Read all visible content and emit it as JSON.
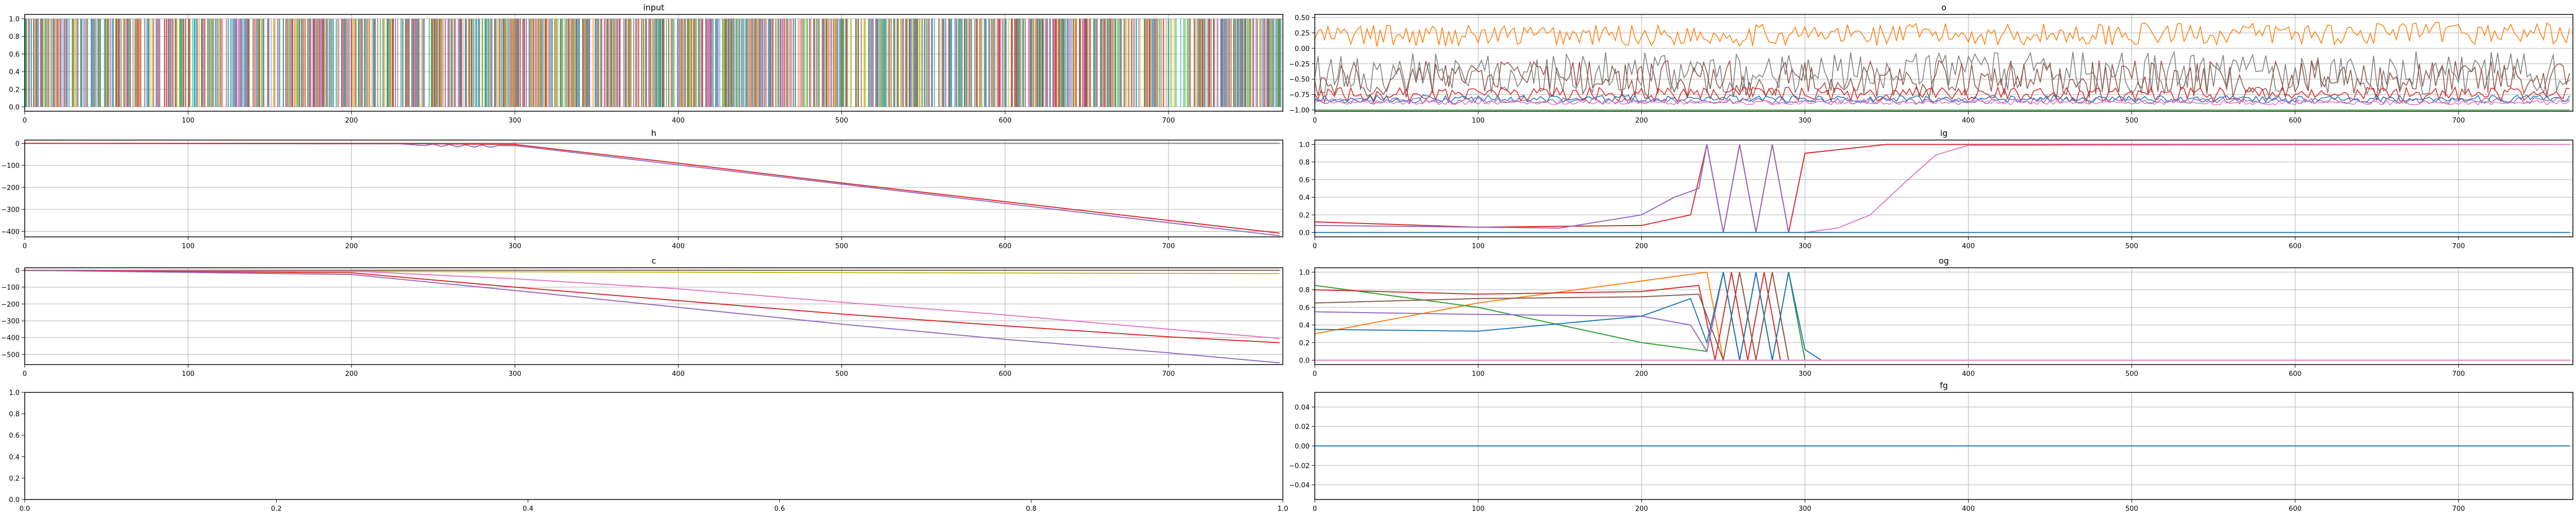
{
  "figure": {
    "panel_count": 8
  },
  "chart_data": [
    {
      "id": "input",
      "type": "line",
      "title": "input",
      "xlim": [
        0,
        770
      ],
      "ylim": [
        -0.05,
        1.05
      ],
      "xticks": [
        0,
        100,
        200,
        300,
        400,
        500,
        600,
        700
      ],
      "yticks": [
        0.0,
        0.2,
        0.4,
        0.6,
        0.8,
        1.0
      ],
      "ytick_labels": [
        "0.0",
        "0.2",
        "0.4",
        "0.6",
        "0.8",
        "1.0"
      ],
      "grid": true,
      "series": [
        {
          "color": "#1f77b4",
          "x": [
            0,
            768
          ],
          "y": [
            0.0,
            1.0
          ]
        },
        {
          "color": "#ff7f0e",
          "x": [
            0,
            768
          ],
          "y": [
            0.0,
            1.0
          ]
        },
        {
          "color": "#2ca02c",
          "x": [
            0,
            768
          ],
          "y": [
            0.0,
            1.0
          ]
        },
        {
          "color": "#d62728",
          "x": [
            0,
            768
          ],
          "y": [
            0.0,
            1.0
          ]
        },
        {
          "color": "#9467bd",
          "x": [
            0,
            768
          ],
          "y": [
            0.0,
            1.0
          ]
        },
        {
          "color": "#8c564b",
          "x": [
            0,
            768
          ],
          "y": [
            0.0,
            1.0
          ]
        },
        {
          "color": "#e377c2",
          "x": [
            0,
            768
          ],
          "y": [
            0.0,
            1.0
          ]
        },
        {
          "color": "#7f7f7f",
          "x": [
            0,
            768
          ],
          "y": [
            0.0,
            1.0
          ]
        },
        {
          "color": "#bcbd22",
          "x": [
            0,
            768
          ],
          "y": [
            0.0,
            1.0
          ]
        },
        {
          "color": "#17becf",
          "x": [
            0,
            768
          ],
          "y": [
            0.0,
            1.0
          ]
        }
      ]
    },
    {
      "id": "o",
      "type": "line",
      "title": "o",
      "xlim": [
        0,
        770
      ],
      "ylim": [
        -1.02,
        0.55
      ],
      "xticks": [
        0,
        100,
        200,
        300,
        400,
        500,
        600,
        700
      ],
      "yticks": [
        -1.0,
        -0.75,
        -0.5,
        -0.25,
        0.0,
        0.25,
        0.5
      ],
      "ytick_labels": [
        "−1.00",
        "−0.75",
        "−0.50",
        "−0.25",
        "0.00",
        "0.25",
        "0.50"
      ],
      "grid": true,
      "series": [
        {
          "color": "#ff7f0e",
          "x": [
            0,
            768
          ],
          "y": [
            0.2,
            0.25
          ]
        },
        {
          "color": "#7f7f7f",
          "x": [
            0,
            768
          ],
          "y": [
            -0.4,
            -0.4
          ]
        },
        {
          "color": "#8c564b",
          "x": [
            0,
            768
          ],
          "y": [
            -0.5,
            -0.5
          ]
        },
        {
          "color": "#d62728",
          "x": [
            0,
            768
          ],
          "y": [
            -0.75,
            -0.75
          ]
        },
        {
          "color": "#1f77b4",
          "x": [
            0,
            768
          ],
          "y": [
            -0.82,
            -0.82
          ]
        },
        {
          "color": "#9467bd",
          "x": [
            0,
            768
          ],
          "y": [
            -0.85,
            -0.85
          ]
        },
        {
          "color": "#e377c2",
          "x": [
            0,
            768
          ],
          "y": [
            -0.88,
            -0.88
          ]
        },
        {
          "color": "#2ca02c",
          "x": [
            0,
            768
          ],
          "y": [
            -1.0,
            -1.0
          ]
        }
      ]
    },
    {
      "id": "h",
      "type": "line",
      "title": "h",
      "xlim": [
        0,
        770
      ],
      "ylim": [
        -425,
        15
      ],
      "xticks": [
        0,
        100,
        200,
        300,
        400,
        500,
        600,
        700
      ],
      "yticks": [
        0,
        -100,
        -200,
        -300,
        -400
      ],
      "ytick_labels": [
        "0",
        "−100",
        "−200",
        "−300",
        "−400"
      ],
      "grid": true,
      "series": [
        {
          "color": "#7f7f7f",
          "x": [
            0,
            768
          ],
          "y": [
            0,
            0
          ]
        },
        {
          "color": "#9467bd",
          "x": [
            0,
            230,
            245,
            250,
            255,
            260,
            265,
            270,
            275,
            280,
            285,
            290,
            300,
            768
          ],
          "y": [
            0,
            -2,
            -10,
            -3,
            -14,
            -5,
            -16,
            -6,
            -17,
            -8,
            -18,
            -10,
            -10,
            -420
          ]
        },
        {
          "color": "#d62728",
          "x": [
            0,
            230,
            300,
            400,
            500,
            600,
            700,
            768
          ],
          "y": [
            0,
            -1,
            -5,
            -90,
            -180,
            -265,
            -350,
            -408
          ]
        }
      ]
    },
    {
      "id": "ig",
      "type": "line",
      "title": "ig",
      "xlim": [
        0,
        770
      ],
      "ylim": [
        -0.05,
        1.05
      ],
      "xticks": [
        0,
        100,
        200,
        300,
        400,
        500,
        600,
        700
      ],
      "yticks": [
        0.0,
        0.2,
        0.4,
        0.6,
        0.8,
        1.0
      ],
      "ytick_labels": [
        "0.0",
        "0.2",
        "0.4",
        "0.6",
        "0.8",
        "1.0"
      ],
      "grid": true,
      "series": [
        {
          "color": "#d62728",
          "x": [
            0,
            100,
            200,
            230,
            240,
            250,
            260,
            270,
            280,
            290,
            300,
            350,
            768
          ],
          "y": [
            0.12,
            0.06,
            0.08,
            0.2,
            1.0,
            0.0,
            1.0,
            0.0,
            1.0,
            0.0,
            0.9,
            1.0,
            1.0
          ]
        },
        {
          "color": "#9467bd",
          "x": [
            0,
            150,
            200,
            220,
            235,
            240,
            250,
            260,
            270,
            280,
            290,
            768
          ],
          "y": [
            0.08,
            0.05,
            0.2,
            0.4,
            0.5,
            1.0,
            0.0,
            1.0,
            0.0,
            1.0,
            0.0,
            0.0
          ]
        },
        {
          "color": "#e377c2",
          "x": [
            0,
            300,
            320,
            340,
            360,
            380,
            400,
            768
          ],
          "y": [
            0.0,
            0.0,
            0.05,
            0.2,
            0.55,
            0.88,
            0.99,
            1.0
          ]
        },
        {
          "color": "#ff7f0e",
          "x": [
            0,
            768
          ],
          "y": [
            0.0,
            0.0
          ]
        },
        {
          "color": "#1f77b4",
          "x": [
            0,
            768
          ],
          "y": [
            0.0,
            0.0
          ]
        }
      ]
    },
    {
      "id": "c",
      "type": "line",
      "title": "c",
      "xlim": [
        0,
        770
      ],
      "ylim": [
        -560,
        15
      ],
      "xticks": [
        0,
        100,
        200,
        300,
        400,
        500,
        600,
        700
      ],
      "yticks": [
        0,
        -100,
        -200,
        -300,
        -400,
        -500
      ],
      "ytick_labels": [
        "0",
        "−100",
        "−200",
        "−300",
        "−400",
        "−500"
      ],
      "grid": true,
      "series": [
        {
          "color": "#8c564b",
          "x": [
            0,
            768
          ],
          "y": [
            0,
            0
          ]
        },
        {
          "color": "#bcbd22",
          "x": [
            0,
            768
          ],
          "y": [
            -2,
            -20
          ]
        },
        {
          "color": "#e377c2",
          "x": [
            0,
            200,
            300,
            400,
            500,
            600,
            700,
            768
          ],
          "y": [
            0,
            -5,
            -50,
            -110,
            -190,
            -265,
            -350,
            -405
          ]
        },
        {
          "color": "#d62728",
          "x": [
            0,
            200,
            300,
            400,
            500,
            600,
            700,
            768
          ],
          "y": [
            0,
            -15,
            -100,
            -180,
            -260,
            -330,
            -395,
            -430
          ]
        },
        {
          "color": "#9467bd",
          "x": [
            0,
            200,
            300,
            400,
            500,
            600,
            700,
            768
          ],
          "y": [
            0,
            -25,
            -120,
            -220,
            -320,
            -410,
            -490,
            -550
          ]
        }
      ]
    },
    {
      "id": "og",
      "type": "line",
      "title": "og",
      "xlim": [
        0,
        770
      ],
      "ylim": [
        -0.05,
        1.05
      ],
      "xticks": [
        0,
        100,
        200,
        300,
        400,
        500,
        600,
        700
      ],
      "yticks": [
        0.0,
        0.2,
        0.4,
        0.6,
        0.8,
        1.0
      ],
      "ytick_labels": [
        "0.0",
        "0.2",
        "0.4",
        "0.6",
        "0.8",
        "1.0"
      ],
      "grid": true,
      "series": [
        {
          "color": "#ff7f0e",
          "x": [
            0,
            100,
            200,
            240,
            250,
            260,
            270,
            280,
            290,
            300,
            768
          ],
          "y": [
            0.3,
            0.65,
            0.9,
            1.0,
            0.0,
            1.0,
            0.0,
            1.0,
            0.0,
            0.0,
            0.0
          ]
        },
        {
          "color": "#2ca02c",
          "x": [
            0,
            100,
            200,
            240,
            250,
            260,
            270,
            280,
            290,
            300,
            768
          ],
          "y": [
            0.85,
            0.6,
            0.2,
            0.1,
            1.0,
            0.0,
            1.0,
            0.0,
            1.0,
            0.0,
            0.0
          ]
        },
        {
          "color": "#d62728",
          "x": [
            0,
            100,
            200,
            235,
            245,
            255,
            265,
            275,
            285,
            295,
            768
          ],
          "y": [
            0.8,
            0.75,
            0.78,
            0.85,
            0.0,
            1.0,
            0.0,
            1.0,
            0.0,
            0.0,
            0.0
          ]
        },
        {
          "color": "#8c564b",
          "x": [
            0,
            100,
            200,
            235,
            250,
            260,
            270,
            280,
            290,
            300,
            768
          ],
          "y": [
            0.65,
            0.7,
            0.72,
            0.75,
            0.0,
            1.0,
            0.0,
            1.0,
            0.0,
            0.0,
            0.0
          ]
        },
        {
          "color": "#9467bd",
          "x": [
            0,
            100,
            200,
            230,
            240,
            250,
            260,
            270,
            280,
            290,
            768
          ],
          "y": [
            0.55,
            0.52,
            0.5,
            0.4,
            0.1,
            1.0,
            0.0,
            1.0,
            0.0,
            0.0,
            0.0
          ]
        },
        {
          "color": "#1f77b4",
          "x": [
            0,
            100,
            200,
            230,
            240,
            250,
            260,
            270,
            280,
            290,
            300,
            310,
            768
          ],
          "y": [
            0.35,
            0.33,
            0.5,
            0.7,
            0.2,
            1.0,
            0.0,
            1.0,
            0.0,
            1.0,
            0.12,
            0.0,
            0.0
          ]
        },
        {
          "color": "#e377c2",
          "x": [
            0,
            768
          ],
          "y": [
            0.0,
            0.0
          ]
        }
      ]
    },
    {
      "id": "empty",
      "type": "line",
      "title": "",
      "xlim": [
        0,
        1
      ],
      "ylim": [
        0,
        1
      ],
      "xticks": [
        0.0,
        0.2,
        0.4,
        0.6,
        0.8,
        1.0
      ],
      "xtick_labels": [
        "0.0",
        "0.2",
        "0.4",
        "0.6",
        "0.8",
        "1.0"
      ],
      "yticks": [
        0.0,
        0.2,
        0.4,
        0.6,
        0.8,
        1.0
      ],
      "ytick_labels": [
        "0.0",
        "0.2",
        "0.4",
        "0.6",
        "0.8",
        "1.0"
      ],
      "grid": false,
      "series": []
    },
    {
      "id": "fg",
      "type": "line",
      "title": "fg",
      "xlim": [
        0,
        770
      ],
      "ylim": [
        -0.055,
        0.055
      ],
      "xticks": [
        0,
        100,
        200,
        300,
        400,
        500,
        600,
        700
      ],
      "yticks": [
        -0.04,
        -0.02,
        0.0,
        0.02,
        0.04
      ],
      "ytick_labels": [
        "−0.04",
        "−0.02",
        "0.00",
        "0.02",
        "0.04"
      ],
      "grid": true,
      "series": [
        {
          "color": "#1f77b4",
          "x": [
            0,
            768
          ],
          "y": [
            0.0,
            0.0
          ]
        }
      ]
    }
  ]
}
